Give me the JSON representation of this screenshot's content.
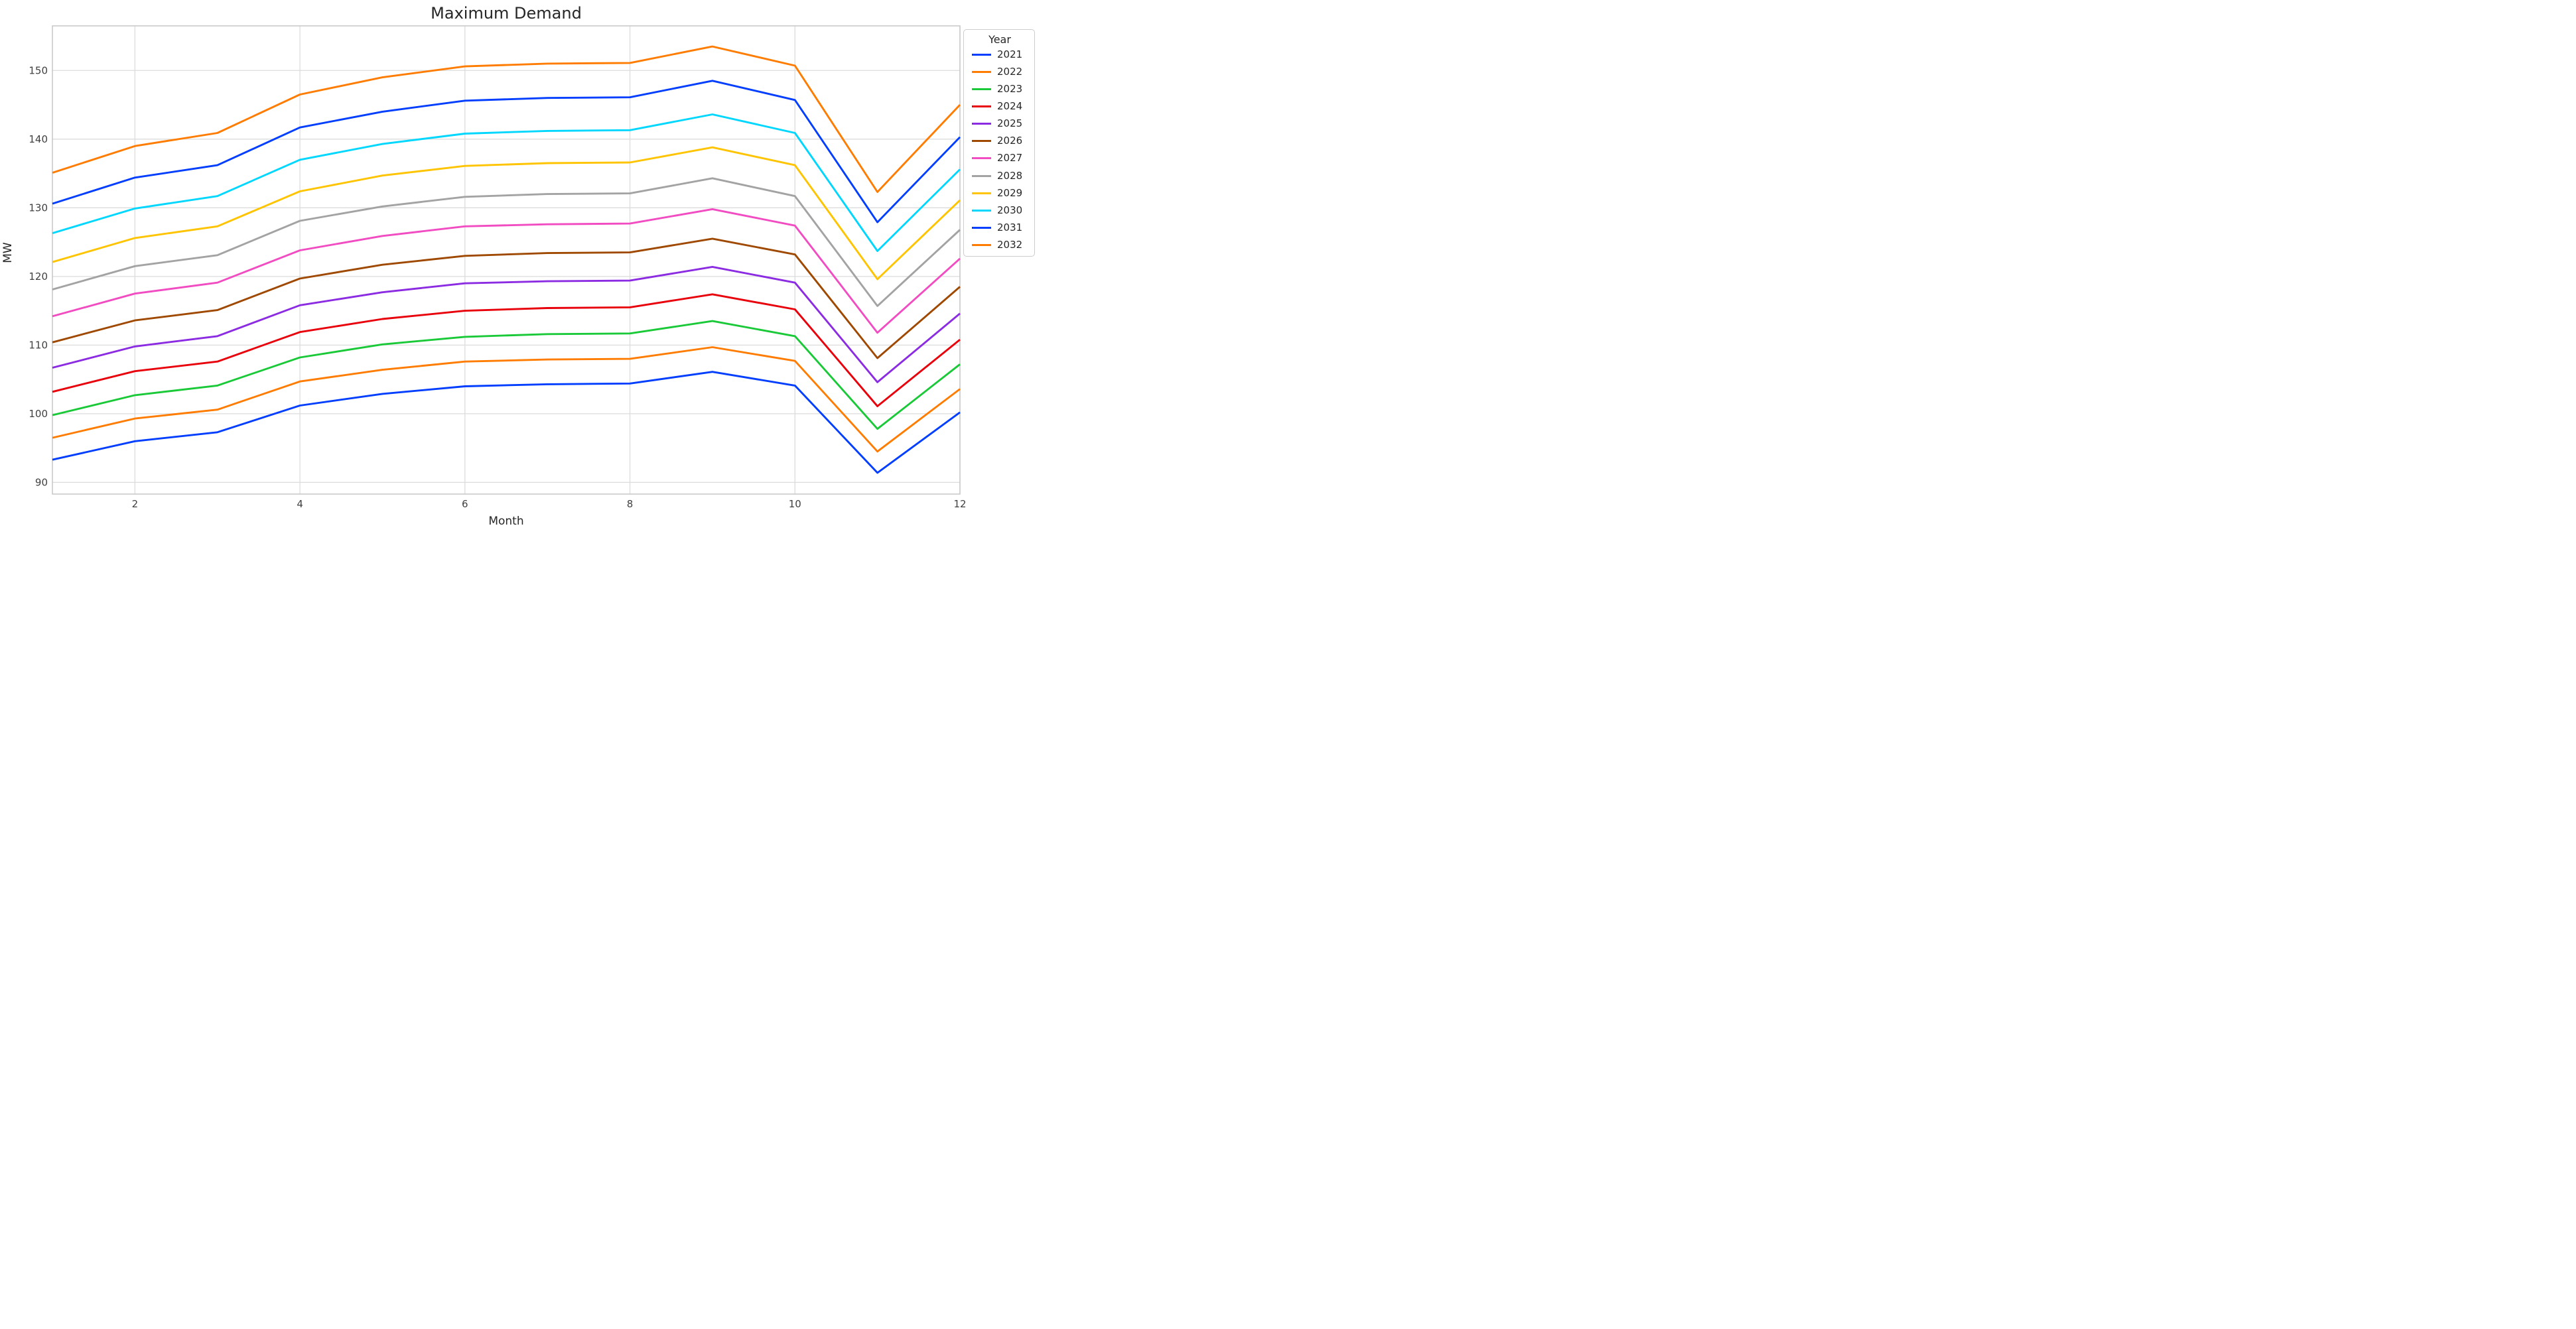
{
  "chart_data": {
    "type": "line",
    "title": "Maximum Demand",
    "xlabel": "Month",
    "ylabel": "MW",
    "legend_title": "Year",
    "legend_position": "outside-right-top",
    "grid": true,
    "background": "#ffffff",
    "grid_color": "#dcdcdc",
    "spine_color": "#c6c6c6",
    "text_color": "#262626",
    "tick_color": "#404040",
    "x": [
      1,
      2,
      3,
      4,
      5,
      6,
      7,
      8,
      9,
      10,
      11,
      12
    ],
    "xticks": [
      2,
      4,
      6,
      8,
      10,
      12
    ],
    "yticks": [
      90,
      100,
      110,
      120,
      130,
      140,
      150
    ],
    "xlim": [
      1,
      12
    ],
    "ylim": [
      88.3,
      156.5
    ],
    "series": [
      {
        "name": "2021",
        "color": "#023EFF",
        "values": [
          93.3,
          96.0,
          97.3,
          101.2,
          102.9,
          104.0,
          104.3,
          104.4,
          106.1,
          104.1,
          91.4,
          100.2
        ]
      },
      {
        "name": "2022",
        "color": "#FF7C00",
        "values": [
          96.5,
          99.3,
          100.6,
          104.7,
          106.4,
          107.6,
          107.9,
          108.0,
          109.7,
          107.7,
          94.5,
          103.6
        ]
      },
      {
        "name": "2023",
        "color": "#1AC938",
        "values": [
          99.8,
          102.7,
          104.1,
          108.2,
          110.1,
          111.2,
          111.6,
          111.7,
          113.5,
          111.3,
          97.8,
          107.2
        ]
      },
      {
        "name": "2024",
        "color": "#E8000B",
        "values": [
          103.2,
          106.2,
          107.6,
          111.9,
          113.8,
          115.0,
          115.4,
          115.5,
          117.4,
          115.2,
          101.1,
          110.8
        ]
      },
      {
        "name": "2025",
        "color": "#8B2BE2",
        "values": [
          106.7,
          109.8,
          111.3,
          115.8,
          117.7,
          119.0,
          119.3,
          119.4,
          121.4,
          119.1,
          104.6,
          114.6
        ]
      },
      {
        "name": "2026",
        "color": "#9F4800",
        "values": [
          110.4,
          113.6,
          115.1,
          119.7,
          121.7,
          123.0,
          123.4,
          123.5,
          125.5,
          123.2,
          108.1,
          118.5
        ]
      },
      {
        "name": "2027",
        "color": "#F14CC1",
        "values": [
          114.2,
          117.5,
          119.1,
          123.8,
          125.9,
          127.3,
          127.6,
          127.7,
          129.8,
          127.4,
          111.8,
          122.6
        ]
      },
      {
        "name": "2028",
        "color": "#A3A3A3",
        "values": [
          118.1,
          121.5,
          123.1,
          128.1,
          130.2,
          131.6,
          132.0,
          132.1,
          134.3,
          131.7,
          115.7,
          126.8
        ]
      },
      {
        "name": "2029",
        "color": "#FFC400",
        "values": [
          122.1,
          125.6,
          127.3,
          132.4,
          134.7,
          136.1,
          136.5,
          136.6,
          138.8,
          136.2,
          119.6,
          131.1
        ]
      },
      {
        "name": "2030",
        "color": "#00D7FF",
        "values": [
          126.3,
          129.9,
          131.7,
          137.0,
          139.3,
          140.8,
          141.2,
          141.3,
          143.6,
          140.9,
          123.7,
          135.6
        ]
      },
      {
        "name": "2031",
        "color": "#023EFF",
        "values": [
          130.6,
          134.4,
          136.2,
          141.7,
          144.0,
          145.6,
          146.0,
          146.1,
          148.5,
          145.7,
          127.9,
          140.3
        ]
      },
      {
        "name": "2032",
        "color": "#FF7C00",
        "values": [
          135.1,
          139.0,
          140.9,
          146.5,
          149.0,
          150.6,
          151.0,
          151.1,
          153.5,
          150.7,
          132.3,
          145.0
        ]
      }
    ]
  }
}
